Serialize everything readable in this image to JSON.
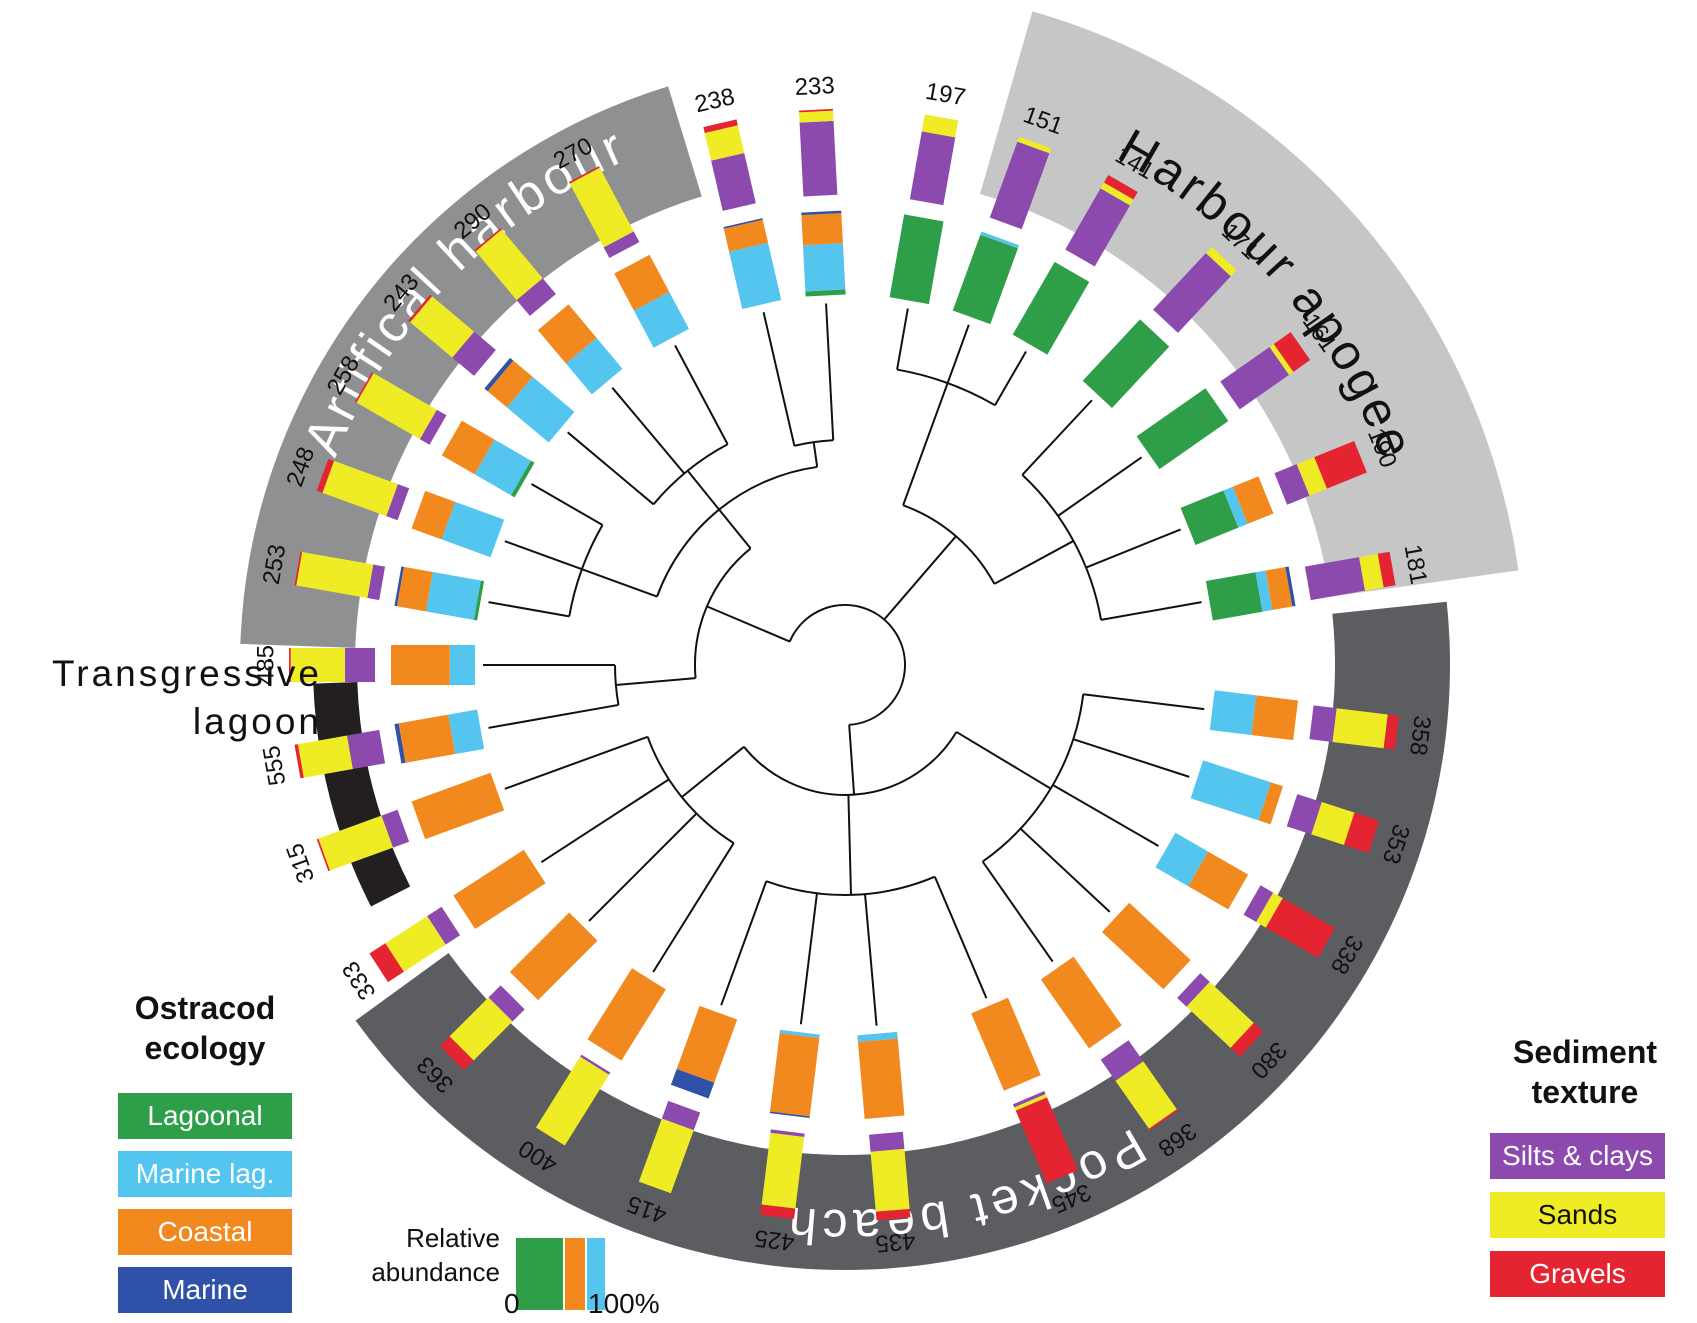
{
  "colors": {
    "lagoonal": "#2e9e48",
    "marine_lag": "#54c5ef",
    "coastal": "#f2891e",
    "marine": "#2f52a8",
    "silts": "#8c49ae",
    "sands": "#efeb25",
    "gravels": "#e52431",
    "ring_artificial": "#8e9092",
    "ring_apogee": "#c6c6c6",
    "ring_pocket": "#5c5d61",
    "ring_lagoon": "#231f20"
  },
  "phases": [
    {
      "name": "Artifical harbour",
      "text_color": "#ffffff"
    },
    {
      "name": "Harbour apogee",
      "text_color": "#111111"
    },
    {
      "name": "Pocket beach",
      "text_color": "#ffffff"
    },
    {
      "name": "Transgressive lagoon",
      "text_color": "#111111"
    }
  ],
  "transgressive_label": {
    "line1": "Transgressive",
    "line2": "lagoon"
  },
  "samples": [
    {
      "id": "555",
      "sediment": [
        0.38,
        0.58,
        0.04
      ],
      "ecology": [
        0,
        0.35,
        0.6,
        0.05
      ]
    },
    {
      "id": "485",
      "sediment": [
        0.35,
        0.63,
        0.02
      ],
      "ecology": [
        0,
        0.3,
        0.7,
        0
      ]
    },
    {
      "id": "253",
      "sediment": [
        0.14,
        0.84,
        0.02
      ],
      "ecology": [
        0.04,
        0.58,
        0.35,
        0.03
      ]
    },
    {
      "id": "248",
      "sediment": [
        0.14,
        0.79,
        0.07
      ],
      "ecology": [
        0,
        0.62,
        0.38,
        0
      ]
    },
    {
      "id": "258",
      "sediment": [
        0.13,
        0.85,
        0.02
      ],
      "ecology": [
        0.05,
        0.5,
        0.45,
        0
      ]
    },
    {
      "id": "243",
      "sediment": [
        0.33,
        0.64,
        0.03
      ],
      "ecology": [
        0,
        0.65,
        0.3,
        0.05
      ]
    },
    {
      "id": "290",
      "sediment": [
        0.24,
        0.74,
        0.02
      ],
      "ecology": [
        0,
        0.48,
        0.52,
        0
      ]
    },
    {
      "id": "270",
      "sediment": [
        0.14,
        0.84,
        0.02
      ],
      "ecology": [
        0,
        0.5,
        0.5,
        0
      ]
    },
    {
      "id": "238",
      "sediment": [
        0.6,
        0.33,
        0.07
      ],
      "ecology": [
        0,
        0.7,
        0.28,
        0.02
      ]
    },
    {
      "id": "233",
      "sediment": [
        0.86,
        0.12,
        0.02
      ],
      "ecology": [
        0.06,
        0.55,
        0.36,
        0.03
      ]
    },
    {
      "id": "197",
      "sediment": [
        0.8,
        0.2,
        0
      ],
      "ecology": [
        1,
        0,
        0,
        0
      ]
    },
    {
      "id": "151",
      "sediment": [
        0.94,
        0.06,
        0
      ],
      "ecology": [
        0.96,
        0.04,
        0,
        0
      ]
    },
    {
      "id": "141",
      "sediment": [
        0.82,
        0.08,
        0.1
      ],
      "ecology": [
        1,
        0,
        0,
        0
      ]
    },
    {
      "id": "171",
      "sediment": [
        0.9,
        0.1,
        0
      ],
      "ecology": [
        1,
        0,
        0,
        0
      ]
    },
    {
      "id": "161",
      "sediment": [
        0.7,
        0.06,
        0.24
      ],
      "ecology": [
        1,
        0,
        0,
        0
      ]
    },
    {
      "id": "190",
      "sediment": [
        0.28,
        0.22,
        0.5
      ],
      "ecology": [
        0.55,
        0.12,
        0.33,
        0
      ]
    },
    {
      "id": "181",
      "sediment": [
        0.64,
        0.22,
        0.14
      ],
      "ecology": [
        0.6,
        0.12,
        0.24,
        0.04
      ]
    },
    {
      "id": "358",
      "sediment": [
        0.27,
        0.6,
        0.13
      ],
      "ecology": [
        0,
        0.5,
        0.5,
        0
      ]
    },
    {
      "id": "353",
      "sediment": [
        0.3,
        0.4,
        0.3
      ],
      "ecology": [
        0,
        0.85,
        0.15,
        0
      ]
    },
    {
      "id": "338",
      "sediment": [
        0.17,
        0.13,
        0.7
      ],
      "ecology": [
        0,
        0.45,
        0.55,
        0
      ]
    },
    {
      "id": "380",
      "sediment": [
        0.15,
        0.7,
        0.15
      ],
      "ecology": [
        0,
        0,
        1,
        0
      ]
    },
    {
      "id": "368",
      "sediment": [
        0.3,
        0.68,
        0.02
      ],
      "ecology": [
        0,
        0,
        1,
        0
      ]
    },
    {
      "id": "345",
      "sediment": [
        0.04,
        0.04,
        0.92
      ],
      "ecology": [
        0,
        0,
        1,
        0
      ]
    },
    {
      "id": "435",
      "sediment": [
        0.2,
        0.7,
        0.1
      ],
      "ecology": [
        0,
        0.08,
        0.92,
        0
      ]
    },
    {
      "id": "425",
      "sediment": [
        0.04,
        0.84,
        0.12
      ],
      "ecology": [
        0,
        0.04,
        0.94,
        0.02
      ]
    },
    {
      "id": "415",
      "sediment": [
        0.22,
        0.78,
        0
      ],
      "ecology": [
        0,
        0,
        0.8,
        0.2
      ]
    },
    {
      "id": "400",
      "sediment": [
        0.03,
        0.97,
        0
      ],
      "ecology": [
        0,
        0,
        1,
        0
      ]
    },
    {
      "id": "363",
      "sediment": [
        0.2,
        0.64,
        0.16
      ],
      "ecology": [
        0,
        0,
        1,
        0
      ]
    },
    {
      "id": "333",
      "sediment": [
        0.2,
        0.58,
        0.22
      ],
      "ecology": [
        0,
        0,
        1,
        0
      ]
    },
    {
      "id": "315",
      "sediment": [
        0.2,
        0.78,
        0.02
      ],
      "ecology": [
        0,
        0,
        1,
        0
      ]
    }
  ],
  "legend": {
    "ecology_title_line1": "Ostracod",
    "ecology_title_line2": "ecology",
    "ecology_items": [
      "Lagoonal",
      "Marine lag.",
      "Coastal",
      "Marine"
    ],
    "sediment_title_line1": "Sediment",
    "sediment_title_line2": "texture",
    "sediment_items": [
      "Silts & clays",
      "Sands",
      "Gravels"
    ],
    "relative_abundance_line1": "Relative",
    "relative_abundance_line2": "abundance",
    "scale_min": "0",
    "scale_max": "100%"
  }
}
